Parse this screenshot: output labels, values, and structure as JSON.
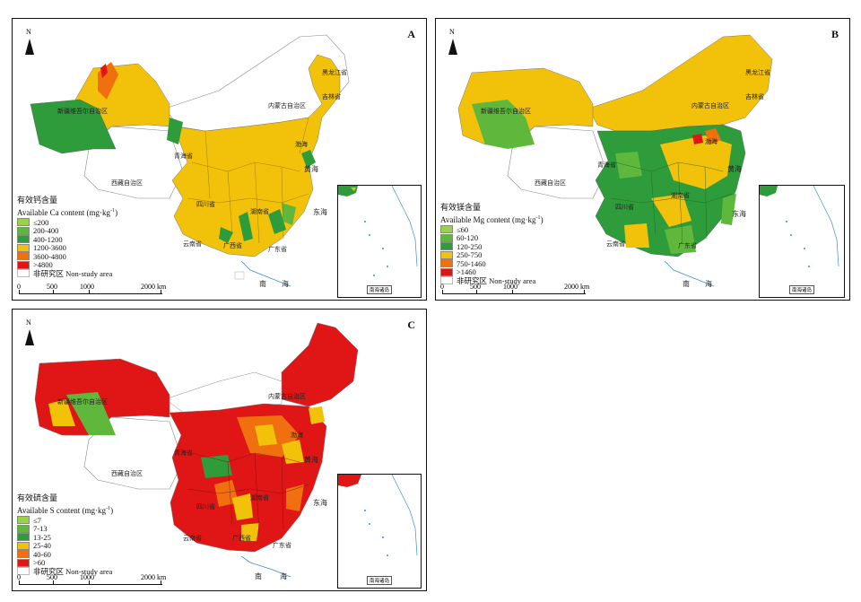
{
  "panels": {
    "a": {
      "letter": "A",
      "legend_title_zh": "有效钙含量",
      "legend_title_en": "Available Ca content (mg·kg",
      "legend_title_sup": "-1",
      "legend_close": ")",
      "classes": [
        {
          "label": "≤200",
          "color": "#9ad04f"
        },
        {
          "label": "200-400",
          "color": "#5fb83c"
        },
        {
          "label": "400-1200",
          "color": "#2e9c3a"
        },
        {
          "label": "1200-3600",
          "color": "#f2c10a"
        },
        {
          "label": "3600-4800",
          "color": "#f07010"
        },
        {
          "label": ">4800",
          "color": "#e01616"
        }
      ],
      "nonstudy": "非研究区 Non-study area",
      "inset_caption": "南海诸岛"
    },
    "b": {
      "letter": "B",
      "legend_title_zh": "有效镁含量",
      "legend_title_en": "Available Mg content (mg·kg",
      "legend_title_sup": "-1",
      "legend_close": ")",
      "classes": [
        {
          "label": "≤60",
          "color": "#9ad04f"
        },
        {
          "label": "60-120",
          "color": "#5fb83c"
        },
        {
          "label": "120-250",
          "color": "#2e9c3a"
        },
        {
          "label": "250-750",
          "color": "#f2c10a"
        },
        {
          "label": "750-1460",
          "color": "#f07010"
        },
        {
          "label": ">1460",
          "color": "#e01616"
        }
      ],
      "nonstudy": "非研究区 Non-study area",
      "inset_caption": "南海诸岛"
    },
    "c": {
      "letter": "C",
      "legend_title_zh": "有效硫含量",
      "legend_title_en": "Available S content (mg·kg",
      "legend_title_sup": "-1",
      "legend_close": ")",
      "classes": [
        {
          "label": "≤7",
          "color": "#9ad04f"
        },
        {
          "label": "7-13",
          "color": "#5fb83c"
        },
        {
          "label": "13-25",
          "color": "#2e9c3a"
        },
        {
          "label": "25-40",
          "color": "#f2c10a"
        },
        {
          "label": "40-60",
          "color": "#f07010"
        },
        {
          "label": ">60",
          "color": "#e01616"
        }
      ],
      "nonstudy": "非研究区 Non-study area",
      "inset_caption": "南海诸岛"
    }
  },
  "scale": {
    "l0": "0",
    "l500": "500",
    "l1000": "1000",
    "l2000": "2000 km"
  },
  "north": "N",
  "places": {
    "xizang": "西藏自治区",
    "qinghai": "青海省",
    "xinjiang": "新疆维吾尔自治区",
    "neimenggu": "内蒙古自治区",
    "heilongjiang": "黑龙江省",
    "jilin": "吉林省",
    "sichuan": "四川省",
    "yunnan": "云南省",
    "guangxi": "广西省",
    "guangdong": "广东省",
    "hunan": "湖南省",
    "huhai": "渤海",
    "huanghai": "黄海",
    "donghai": "东海",
    "nan": "南",
    "hai": "海"
  }
}
